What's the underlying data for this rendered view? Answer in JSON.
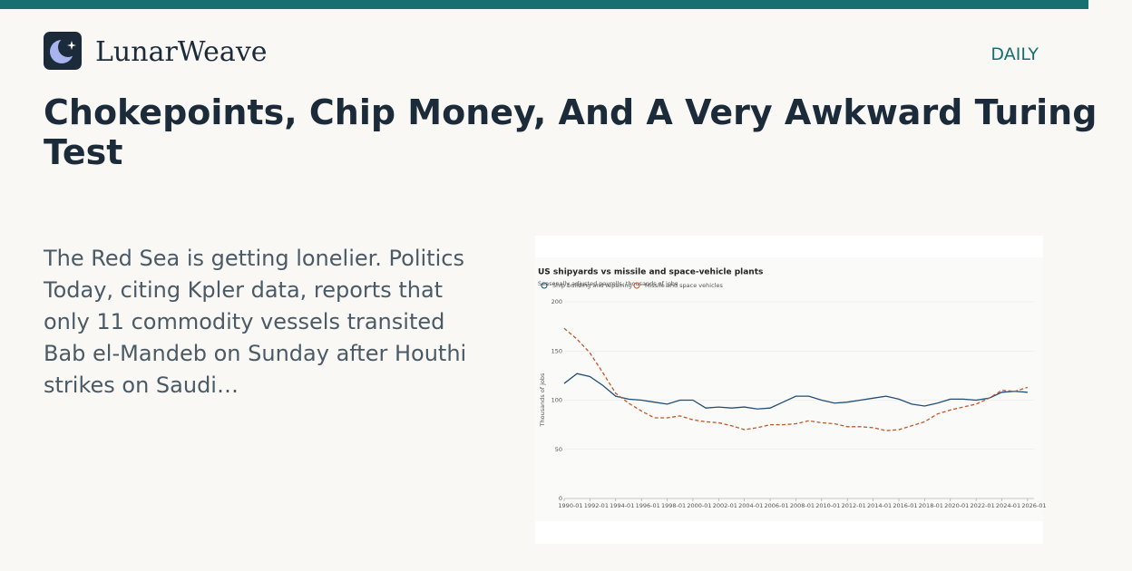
{
  "header": {
    "brand": "LunarWeave",
    "section": "DAILY"
  },
  "article": {
    "title": "Chokepoints, Chip Money, And A Very Awkward Turing Test",
    "excerpt": "The Red Sea is getting lonelier. Politics Today, citing Kpler data, reports that only 11 commodity vessels transited Bab el-Mandeb on Sunday after Houthi strikes on Saudi…"
  },
  "chart_data": {
    "type": "line",
    "title": "US shipyards vs missile and space-vehicle plants",
    "subtitle": "Seasonally adjusted payrolls, thousands of jobs",
    "y_label": "Thousands of jobs",
    "x": [
      "1990-01",
      "1991-01",
      "1992-01",
      "1993-01",
      "1994-01",
      "1995-01",
      "1996-01",
      "1997-01",
      "1998-01",
      "1999-01",
      "2000-01",
      "2001-01",
      "2002-01",
      "2003-01",
      "2004-01",
      "2005-01",
      "2006-01",
      "2007-01",
      "2008-01",
      "2009-01",
      "2010-01",
      "2011-01",
      "2012-01",
      "2013-01",
      "2014-01",
      "2015-01",
      "2016-01",
      "2017-01",
      "2018-01",
      "2019-01",
      "2020-01",
      "2021-01",
      "2022-01",
      "2023-01",
      "2024-01",
      "2025-01",
      "2026-01"
    ],
    "series": [
      {
        "name": "Ship building and repairing",
        "color": "#1f4e79",
        "dash": false,
        "values": [
          117,
          127,
          124,
          115,
          104,
          101,
          100,
          98,
          96,
          100,
          100,
          92,
          93,
          92,
          93,
          91,
          92,
          98,
          104,
          104,
          100,
          97,
          98,
          100,
          102,
          104,
          101,
          96,
          94,
          97,
          101,
          101,
          100,
          102,
          108,
          109,
          108
        ]
      },
      {
        "name": "Missile and space vehicles",
        "color": "#c0582b",
        "dash": true,
        "values": [
          173,
          162,
          148,
          128,
          107,
          97,
          89,
          82,
          82,
          84,
          80,
          78,
          77,
          74,
          70,
          72,
          75,
          75,
          76,
          79,
          77,
          76,
          73,
          73,
          72,
          69,
          70,
          74,
          78,
          86,
          90,
          93,
          96,
          102,
          110,
          109,
          113
        ]
      }
    ],
    "xlim": [
      "1990-01",
      "2026-07"
    ],
    "xticks": [
      "1990-01",
      "1992-01",
      "1994-01",
      "1996-01",
      "1998-01",
      "2000-01",
      "2002-01",
      "2004-01",
      "2006-01",
      "2008-01",
      "2010-01",
      "2012-01",
      "2014-01",
      "2016-01",
      "2018-01",
      "2020-01",
      "2022-01",
      "2024-01",
      "2026-01"
    ],
    "ylim": [
      0,
      200
    ],
    "yticks": [
      0,
      50,
      100,
      150,
      200
    ],
    "grid": true
  }
}
